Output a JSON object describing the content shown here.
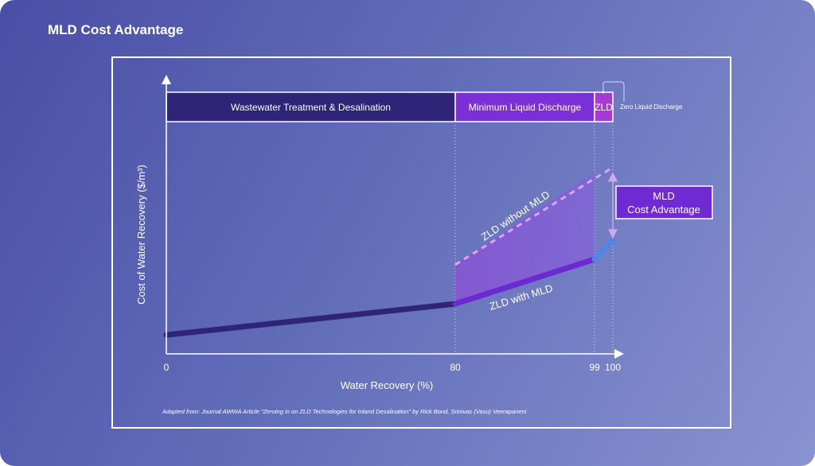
{
  "title": "MLD Cost Advantage",
  "chart_data": {
    "type": "line",
    "title": "MLD Cost Advantage",
    "xlabel": "Water Recovery (%)",
    "ylabel": "Cost of Water Recovery ($/m³)",
    "x_ticks": [
      "0",
      "80",
      "99",
      "100"
    ],
    "xlim": [
      0,
      100
    ],
    "ylim": [
      0,
      100
    ],
    "y_unit_note": "relative (no y tick labels shown)",
    "series": [
      {
        "name": "ZLD with MLD",
        "x": [
          0,
          80,
          99,
          100
        ],
        "y": [
          7,
          18.5,
          35,
          42
        ],
        "color": "#6a2ad0",
        "segment_colors": [
          "#2e2478",
          "#6a2ad0",
          "#4f86e6"
        ]
      },
      {
        "name": "ZLD without MLD",
        "x": [
          80,
          100
        ],
        "y": [
          33,
          69
        ],
        "style": "dashed",
        "color": "#d8a6f0"
      }
    ],
    "regions": [
      {
        "label": "Wastewater Treatment & Desalination",
        "from": 0,
        "to": 80,
        "color": "#2e2478"
      },
      {
        "label": "Minimum Liquid Discharge",
        "from": 80,
        "to": 99,
        "color": "#7b2fd6"
      },
      {
        "label": "ZLD",
        "from": 99,
        "to": 100,
        "color": "#a63ad2"
      }
    ],
    "annotations": {
      "zld_callout": "Zero Liquid Discharge",
      "advantage_box": [
        "MLD",
        "Cost Advantage"
      ],
      "advantage_color": "#6f2ad4"
    },
    "source": "Adapted from:  Journal AWWA Article \"Zeroing in on ZLD Technologies for Inland Desalination\" by Rick Bond, Srinivas (Vasu) Veerapaneni"
  }
}
